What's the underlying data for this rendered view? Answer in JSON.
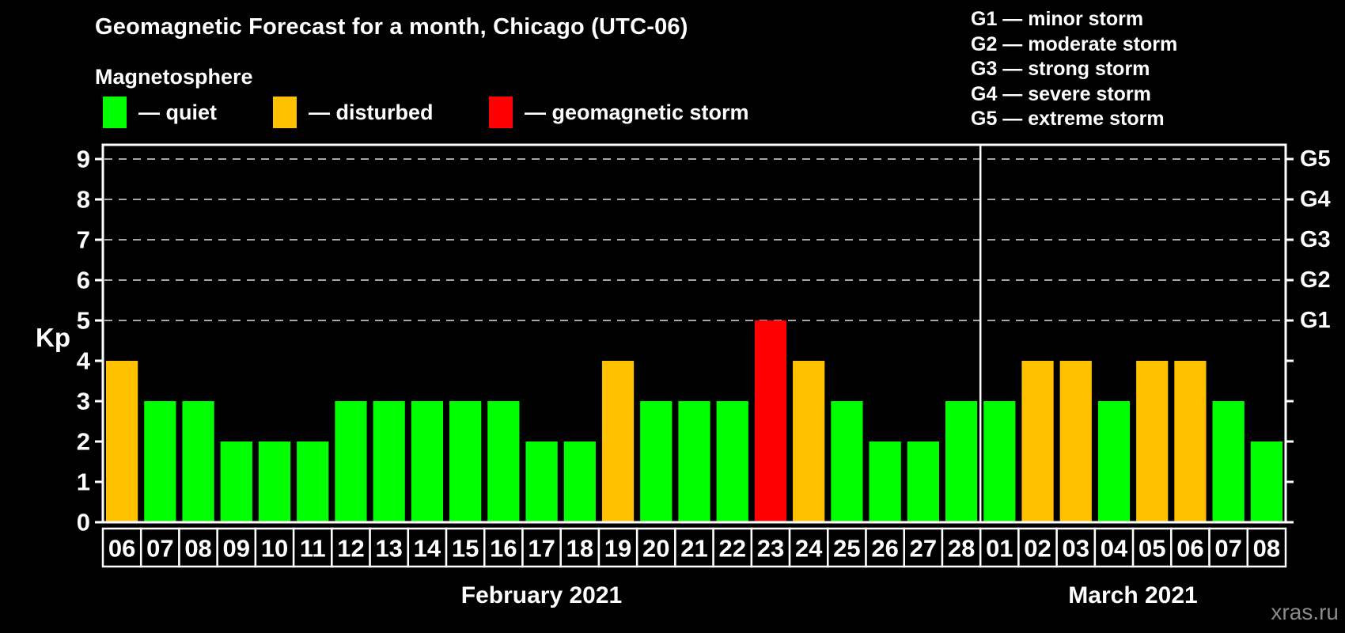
{
  "title": "Geomagnetic Forecast for a month, Chicago (UTC-06)",
  "subtitle": "Magnetosphere",
  "watermark": "xras.ru",
  "legend": {
    "items": [
      {
        "status": "quiet",
        "label": "— quiet",
        "color": "#00ff00"
      },
      {
        "status": "disturbed",
        "label": "— disturbed",
        "color": "#ffc000"
      },
      {
        "status": "storm",
        "label": "— geomagnetic storm",
        "color": "#ff0000"
      }
    ]
  },
  "g_scale_legend": {
    "lines": [
      "G1 — minor storm",
      "G2 — moderate storm",
      "G3 — strong storm",
      "G4 — severe storm",
      "G5 — extreme storm"
    ]
  },
  "chart_data": {
    "type": "bar",
    "ylabel": "Kp",
    "ylim": [
      0,
      9.35
    ],
    "yticks": [
      "0",
      "1",
      "2",
      "3",
      "4",
      "5",
      "6",
      "7",
      "8",
      "9"
    ],
    "grid_levels": [
      5,
      6,
      7,
      8,
      9
    ],
    "right_axis": [
      {
        "kp": 5,
        "label": "G1"
      },
      {
        "kp": 6,
        "label": "G2"
      },
      {
        "kp": 7,
        "label": "G3"
      },
      {
        "kp": 8,
        "label": "G4"
      },
      {
        "kp": 9,
        "label": "G5"
      }
    ],
    "status_colors": {
      "quiet": "#00ff00",
      "disturbed": "#ffc000",
      "storm": "#ff0000"
    },
    "months": [
      {
        "label": "February 2021",
        "days": [
          {
            "day": "06",
            "kp": 4,
            "status": "disturbed"
          },
          {
            "day": "07",
            "kp": 3,
            "status": "quiet"
          },
          {
            "day": "08",
            "kp": 3,
            "status": "quiet"
          },
          {
            "day": "09",
            "kp": 2,
            "status": "quiet"
          },
          {
            "day": "10",
            "kp": 2,
            "status": "quiet"
          },
          {
            "day": "11",
            "kp": 2,
            "status": "quiet"
          },
          {
            "day": "12",
            "kp": 3,
            "status": "quiet"
          },
          {
            "day": "13",
            "kp": 3,
            "status": "quiet"
          },
          {
            "day": "14",
            "kp": 3,
            "status": "quiet"
          },
          {
            "day": "15",
            "kp": 3,
            "status": "quiet"
          },
          {
            "day": "16",
            "kp": 3,
            "status": "quiet"
          },
          {
            "day": "17",
            "kp": 2,
            "status": "quiet"
          },
          {
            "day": "18",
            "kp": 2,
            "status": "quiet"
          },
          {
            "day": "19",
            "kp": 4,
            "status": "disturbed"
          },
          {
            "day": "20",
            "kp": 3,
            "status": "quiet"
          },
          {
            "day": "21",
            "kp": 3,
            "status": "quiet"
          },
          {
            "day": "22",
            "kp": 3,
            "status": "quiet"
          },
          {
            "day": "23",
            "kp": 5,
            "status": "storm"
          },
          {
            "day": "24",
            "kp": 4,
            "status": "disturbed"
          },
          {
            "day": "25",
            "kp": 3,
            "status": "quiet"
          },
          {
            "day": "26",
            "kp": 2,
            "status": "quiet"
          },
          {
            "day": "27",
            "kp": 2,
            "status": "quiet"
          },
          {
            "day": "28",
            "kp": 3,
            "status": "quiet"
          }
        ]
      },
      {
        "label": "March 2021",
        "days": [
          {
            "day": "01",
            "kp": 3,
            "status": "quiet"
          },
          {
            "day": "02",
            "kp": 4,
            "status": "disturbed"
          },
          {
            "day": "03",
            "kp": 4,
            "status": "disturbed"
          },
          {
            "day": "04",
            "kp": 3,
            "status": "quiet"
          },
          {
            "day": "05",
            "kp": 4,
            "status": "disturbed"
          },
          {
            "day": "06",
            "kp": 4,
            "status": "disturbed"
          },
          {
            "day": "07",
            "kp": 3,
            "status": "quiet"
          },
          {
            "day": "08",
            "kp": 2,
            "status": "quiet"
          }
        ]
      }
    ]
  }
}
